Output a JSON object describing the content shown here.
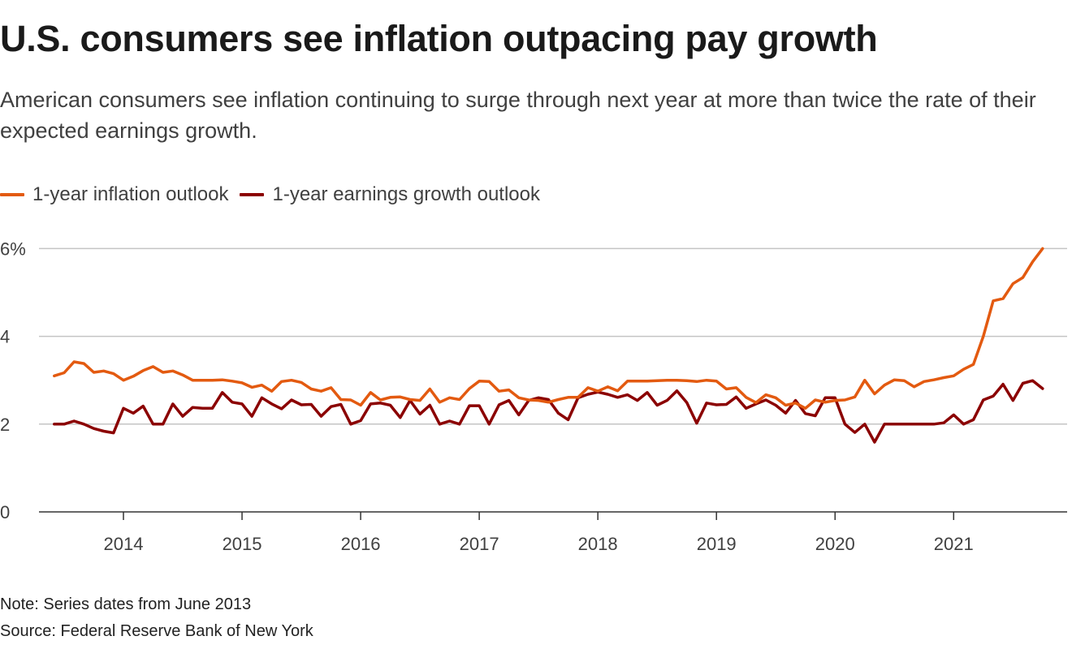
{
  "title": "U.S. consumers see inflation outpacing pay growth",
  "subtitle": "American consumers see inflation continuing to surge through next year at more than twice the rate of their expected earnings growth.",
  "note": "Note: Series dates from June 2013",
  "source": "Source: Federal Reserve Bank of New York",
  "chart_data": {
    "type": "line",
    "title": "U.S. consumers see inflation outpacing pay growth",
    "xlabel": "",
    "ylabel": "",
    "ylim": [
      0,
      6
    ],
    "yticks": [
      {
        "value": 0,
        "label": "0"
      },
      {
        "value": 2,
        "label": "2"
      },
      {
        "value": 4,
        "label": "4"
      },
      {
        "value": 6,
        "label": "6%"
      }
    ],
    "xticks": [
      {
        "date": "2014-01",
        "label": "2014"
      },
      {
        "date": "2015-01",
        "label": "2015"
      },
      {
        "date": "2016-01",
        "label": "2016"
      },
      {
        "date": "2017-01",
        "label": "2017"
      },
      {
        "date": "2018-01",
        "label": "2018"
      },
      {
        "date": "2019-01",
        "label": "2019"
      },
      {
        "date": "2020-01",
        "label": "2020"
      },
      {
        "date": "2021-01",
        "label": "2021"
      }
    ],
    "grid": "horizontal",
    "legend": "top-left",
    "x": [
      "2013-06",
      "2013-07",
      "2013-08",
      "2013-09",
      "2013-10",
      "2013-11",
      "2013-12",
      "2014-01",
      "2014-02",
      "2014-03",
      "2014-04",
      "2014-05",
      "2014-06",
      "2014-07",
      "2014-08",
      "2014-09",
      "2014-10",
      "2014-11",
      "2014-12",
      "2015-01",
      "2015-02",
      "2015-03",
      "2015-04",
      "2015-05",
      "2015-06",
      "2015-07",
      "2015-08",
      "2015-09",
      "2015-10",
      "2015-11",
      "2015-12",
      "2016-01",
      "2016-02",
      "2016-03",
      "2016-04",
      "2016-05",
      "2016-06",
      "2016-07",
      "2016-08",
      "2016-09",
      "2016-10",
      "2016-11",
      "2016-12",
      "2017-01",
      "2017-02",
      "2017-03",
      "2017-04",
      "2017-05",
      "2017-06",
      "2017-07",
      "2017-08",
      "2017-09",
      "2017-10",
      "2017-11",
      "2017-12",
      "2018-01",
      "2018-02",
      "2018-03",
      "2018-04",
      "2018-05",
      "2018-06",
      "2018-07",
      "2018-08",
      "2018-09",
      "2018-10",
      "2018-11",
      "2018-12",
      "2019-01",
      "2019-02",
      "2019-03",
      "2019-04",
      "2019-05",
      "2019-06",
      "2019-07",
      "2019-08",
      "2019-09",
      "2019-10",
      "2019-11",
      "2019-12",
      "2020-01",
      "2020-02",
      "2020-03",
      "2020-04",
      "2020-05",
      "2020-06",
      "2020-07",
      "2020-08",
      "2020-09",
      "2020-10",
      "2020-11",
      "2020-12",
      "2021-01",
      "2021-02",
      "2021-03",
      "2021-04",
      "2021-05",
      "2021-06",
      "2021-07",
      "2021-08",
      "2021-09",
      "2021-10"
    ],
    "series": [
      {
        "name": "1-year inflation outlook",
        "color": "#e35a10",
        "values": [
          3.1,
          3.17,
          3.42,
          3.38,
          3.18,
          3.21,
          3.15,
          3.0,
          3.09,
          3.22,
          3.31,
          3.18,
          3.21,
          3.12,
          3.0,
          3.0,
          3.0,
          3.01,
          2.98,
          2.94,
          2.84,
          2.89,
          2.75,
          2.97,
          3.0,
          2.95,
          2.8,
          2.75,
          2.83,
          2.56,
          2.55,
          2.43,
          2.72,
          2.55,
          2.61,
          2.62,
          2.56,
          2.54,
          2.8,
          2.5,
          2.6,
          2.56,
          2.81,
          2.98,
          2.97,
          2.75,
          2.78,
          2.6,
          2.55,
          2.54,
          2.5,
          2.56,
          2.61,
          2.61,
          2.83,
          2.75,
          2.85,
          2.76,
          2.98,
          2.98,
          2.98,
          2.99,
          3.0,
          3.0,
          2.99,
          2.97,
          3.0,
          2.98,
          2.8,
          2.83,
          2.61,
          2.49,
          2.67,
          2.6,
          2.43,
          2.48,
          2.36,
          2.55,
          2.5,
          2.54,
          2.55,
          2.62,
          3.0,
          2.69,
          2.89,
          3.01,
          2.99,
          2.85,
          2.97,
          3.01,
          3.06,
          3.1,
          3.25,
          3.36,
          4.0,
          4.81,
          4.86,
          5.2,
          5.34,
          5.7,
          6.0
        ]
      },
      {
        "name": "1-year earnings growth outlook",
        "color": "#8b0000",
        "values": [
          2.0,
          2.0,
          2.07,
          2.0,
          1.9,
          1.84,
          1.8,
          2.36,
          2.25,
          2.41,
          2.0,
          2.0,
          2.46,
          2.18,
          2.38,
          2.36,
          2.36,
          2.72,
          2.5,
          2.46,
          2.18,
          2.6,
          2.46,
          2.35,
          2.55,
          2.44,
          2.45,
          2.18,
          2.4,
          2.45,
          2.0,
          2.08,
          2.46,
          2.48,
          2.43,
          2.15,
          2.54,
          2.23,
          2.43,
          2.0,
          2.07,
          2.0,
          2.42,
          2.42,
          2.0,
          2.44,
          2.54,
          2.21,
          2.54,
          2.6,
          2.56,
          2.25,
          2.1,
          2.6,
          2.68,
          2.73,
          2.68,
          2.61,
          2.67,
          2.54,
          2.72,
          2.43,
          2.54,
          2.76,
          2.49,
          2.02,
          2.48,
          2.44,
          2.45,
          2.62,
          2.36,
          2.46,
          2.55,
          2.43,
          2.25,
          2.54,
          2.24,
          2.19,
          2.6,
          2.6,
          2.0,
          1.81,
          2.0,
          1.59,
          2.0,
          2.0,
          2.0,
          2.0,
          2.0,
          2.0,
          2.03,
          2.21,
          2.0,
          2.1,
          2.55,
          2.64,
          2.91,
          2.54,
          2.93,
          2.99,
          2.81
        ]
      }
    ]
  }
}
